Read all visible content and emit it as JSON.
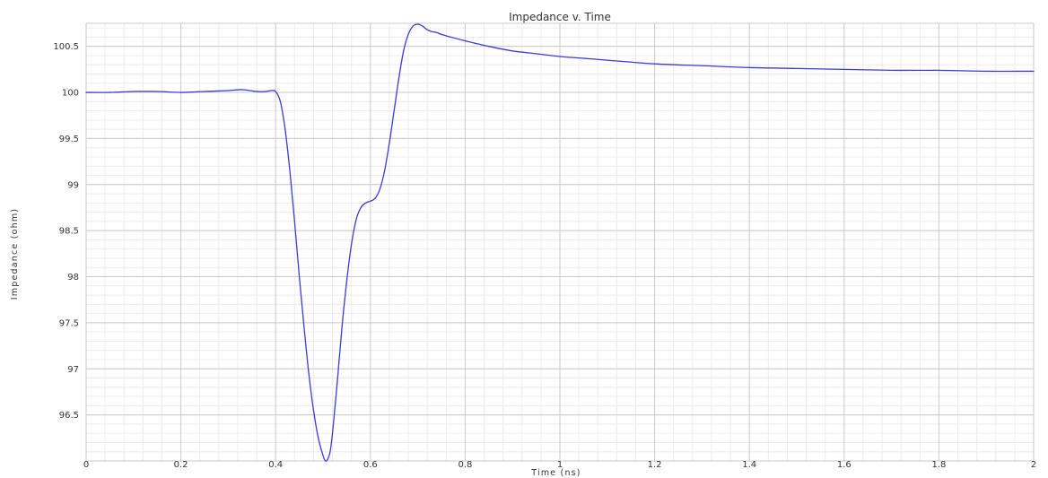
{
  "chart_data": {
    "type": "line",
    "title": "Impedance v. Time",
    "xlabel": "Time (ns)",
    "ylabel": "Impedance (ohm)",
    "xlim": [
      0,
      2
    ],
    "ylim": [
      96,
      100.75
    ],
    "x_ticks": [
      0,
      0.2,
      0.4,
      0.6,
      0.8,
      1,
      1.2,
      1.4,
      1.6,
      1.8,
      2
    ],
    "x_tick_labels": [
      "0",
      "0.2",
      "0.4",
      "0.6",
      "0.8",
      "1",
      "1.2",
      "1.4",
      "1.6",
      "1.8",
      "2"
    ],
    "y_ticks": [
      96.5,
      97,
      97.5,
      98,
      98.5,
      99,
      99.5,
      100,
      100.5
    ],
    "y_tick_labels": [
      "96.5",
      "97",
      "97.5",
      "98",
      "98.5",
      "99",
      "99.5",
      "100",
      "100.5"
    ],
    "grid": true,
    "legend": "none",
    "series": [
      {
        "color": "#3a3adf",
        "x": [
          0,
          0.05,
          0.1,
          0.15,
          0.2,
          0.25,
          0.3,
          0.33,
          0.36,
          0.38,
          0.39,
          0.4,
          0.41,
          0.42,
          0.43,
          0.44,
          0.45,
          0.46,
          0.47,
          0.48,
          0.49,
          0.5,
          0.505,
          0.51,
          0.515,
          0.52,
          0.53,
          0.54,
          0.55,
          0.56,
          0.57,
          0.58,
          0.59,
          0.6,
          0.61,
          0.62,
          0.63,
          0.64,
          0.65,
          0.66,
          0.67,
          0.68,
          0.69,
          0.7,
          0.71,
          0.72,
          0.73,
          0.74,
          0.75,
          0.77,
          0.8,
          0.85,
          0.9,
          0.95,
          1.0,
          1.05,
          1.1,
          1.2,
          1.3,
          1.4,
          1.5,
          1.6,
          1.7,
          1.8,
          1.9,
          2.0
        ],
        "y": [
          100.0,
          100.0,
          100.01,
          100.01,
          100.0,
          100.01,
          100.02,
          100.03,
          100.01,
          100.01,
          100.02,
          100.01,
          99.9,
          99.6,
          99.15,
          98.6,
          98.0,
          97.45,
          96.95,
          96.55,
          96.25,
          96.06,
          96.0,
          96.02,
          96.1,
          96.3,
          96.85,
          97.45,
          97.95,
          98.35,
          98.62,
          98.75,
          98.8,
          98.82,
          98.85,
          98.95,
          99.15,
          99.45,
          99.8,
          100.15,
          100.45,
          100.63,
          100.72,
          100.74,
          100.72,
          100.68,
          100.66,
          100.65,
          100.63,
          100.6,
          100.56,
          100.5,
          100.45,
          100.42,
          100.39,
          100.37,
          100.35,
          100.31,
          100.29,
          100.27,
          100.26,
          100.25,
          100.24,
          100.24,
          100.23,
          100.23
        ]
      }
    ]
  }
}
